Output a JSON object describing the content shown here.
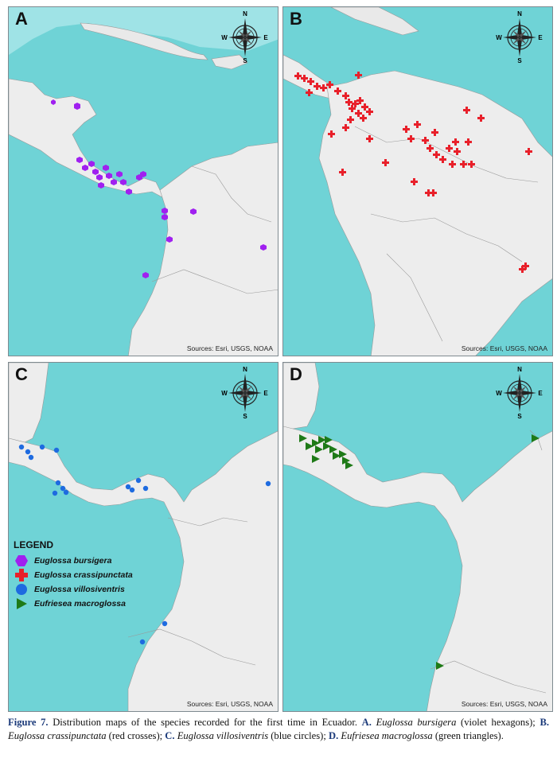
{
  "panels": [
    {
      "id": "A",
      "sources": "Sources: Esri, USGS, NOAA"
    },
    {
      "id": "B",
      "sources": "Sources: Esri, USGS, NOAA"
    },
    {
      "id": "C",
      "sources": "Sources: Esri, USGS, NOAA"
    },
    {
      "id": "D",
      "sources": "Sources: Esri, USGS, NOAA"
    }
  ],
  "compass": {
    "n": "N",
    "s": "S",
    "e": "E",
    "w": "W"
  },
  "legend": {
    "title": "LEGEND",
    "items": [
      {
        "label": "Euglossa bursigera",
        "symbol": "hexagon",
        "color": "#a020f0"
      },
      {
        "label": "Euglossa crassipunctata",
        "symbol": "cross",
        "color": "#e8202a"
      },
      {
        "label": "Euglossa villosiventris",
        "symbol": "circle",
        "color": "#1e6be0"
      },
      {
        "label": "Eufriesea macroglossa",
        "symbol": "triangle",
        "color": "#1e7a17"
      }
    ]
  },
  "caption": {
    "figure_label": "Figure 7.",
    "text1": " Distribution maps of the species recorded for the first time in Ecuador. ",
    "a_label": "A.",
    "a_species": "Euglossa bursigera",
    "a_note": " (violet hexagons); ",
    "b_label": "B.",
    "b_species": "Euglossa crassipunctata",
    "b_note": " (red crosses); ",
    "c_label": "C.",
    "c_species": "Euglossa villosiventris",
    "c_note": " (blue circles); ",
    "d_label": "D.",
    "d_species": "Eufriesea macroglossa",
    "d_note": " (green triangles)."
  }
}
